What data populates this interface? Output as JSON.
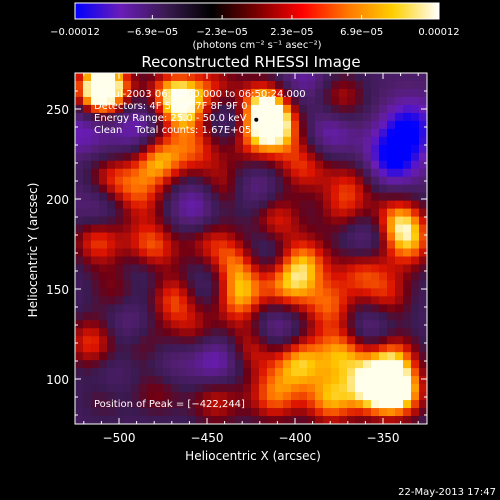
{
  "chart_data": {
    "type": "heatmap",
    "title": "Reconstructed RHESSI Image",
    "xlabel": "Heliocentric X (arcsec)",
    "ylabel": "Heliocentric Y (arcsec)",
    "xlim": [
      -525,
      -325
    ],
    "ylim": [
      75,
      270
    ],
    "x_ticks": [
      -500,
      -450,
      -400,
      -350
    ],
    "x_tick_labels": [
      "−500",
      "−450",
      "−400",
      "−350"
    ],
    "y_ticks": [
      100,
      150,
      200,
      250
    ],
    "y_tick_labels": [
      "100",
      "150",
      "200",
      "250"
    ],
    "colorbar": {
      "min": -0.00012,
      "max": 0.00012,
      "ticks": [
        -0.00012,
        -6.9e-05,
        -2.3e-05,
        2.3e-05,
        6.9e-05,
        0.00012
      ],
      "tick_labels": [
        "−0.00012",
        "−6.9e−05",
        "−2.3e−05",
        "2.3e−05",
        "6.9e−05",
        "0.00012"
      ],
      "unit_label": "(photons cm⁻² s⁻¹ asec⁻²)",
      "colors": [
        "#0000ff",
        "#6a1cb8",
        "#3a1a50",
        "#000000",
        "#7a0000",
        "#ff0000",
        "#ff7700",
        "#ffd000",
        "#ffffff"
      ]
    },
    "annotations": {
      "time_range": "2-Jul-2003 06:48:00.000 to 06:50:24.000",
      "detectors": "Detectors: 4F 5F 6F 7F 8F 9F 0",
      "energy_range": "Energy Range: 25.0 - 50.0 keV",
      "method_counts": "Clean    Total counts: 1.67E+05",
      "peak": "Position of Peak = [−422,244]"
    },
    "peak": [
      -422,
      244
    ],
    "blobs": [
      {
        "x": -512,
        "y": 258,
        "v": 0.85
      },
      {
        "x": -507,
        "y": 262,
        "v": 0.9
      },
      {
        "x": -470,
        "y": 258,
        "v": 0.8
      },
      {
        "x": -462,
        "y": 250,
        "v": 0.7
      },
      {
        "x": -445,
        "y": 262,
        "v": 0.55
      },
      {
        "x": -418,
        "y": 252,
        "v": 0.95
      },
      {
        "x": -410,
        "y": 240,
        "v": 0.9
      },
      {
        "x": -375,
        "y": 255,
        "v": 0.65
      },
      {
        "x": -478,
        "y": 222,
        "v": 0.9
      },
      {
        "x": -455,
        "y": 228,
        "v": 0.6
      },
      {
        "x": -425,
        "y": 232,
        "v": 0.55
      },
      {
        "x": -395,
        "y": 218,
        "v": 0.65
      },
      {
        "x": -368,
        "y": 210,
        "v": 0.5
      },
      {
        "x": -505,
        "y": 210,
        "v": 0.7
      },
      {
        "x": -488,
        "y": 200,
        "v": 0.55
      },
      {
        "x": -440,
        "y": 205,
        "v": 0.7
      },
      {
        "x": -412,
        "y": 188,
        "v": 0.75
      },
      {
        "x": -372,
        "y": 192,
        "v": 0.55
      },
      {
        "x": -342,
        "y": 188,
        "v": 0.85
      },
      {
        "x": -335,
        "y": 175,
        "v": 0.7
      },
      {
        "x": -512,
        "y": 178,
        "v": 0.8
      },
      {
        "x": -482,
        "y": 172,
        "v": 0.9
      },
      {
        "x": -450,
        "y": 178,
        "v": 0.6
      },
      {
        "x": -432,
        "y": 165,
        "v": 0.75
      },
      {
        "x": -395,
        "y": 165,
        "v": 0.8
      },
      {
        "x": -362,
        "y": 162,
        "v": 0.7
      },
      {
        "x": -500,
        "y": 150,
        "v": 0.55
      },
      {
        "x": -468,
        "y": 145,
        "v": 0.8
      },
      {
        "x": -432,
        "y": 145,
        "v": 0.85
      },
      {
        "x": -405,
        "y": 150,
        "v": 0.75
      },
      {
        "x": -380,
        "y": 140,
        "v": 0.7
      },
      {
        "x": -348,
        "y": 145,
        "v": 0.6
      },
      {
        "x": -515,
        "y": 120,
        "v": 0.75
      },
      {
        "x": -485,
        "y": 118,
        "v": 0.6
      },
      {
        "x": -455,
        "y": 125,
        "v": 0.55
      },
      {
        "x": -425,
        "y": 118,
        "v": 0.75
      },
      {
        "x": -398,
        "y": 110,
        "v": 0.9
      },
      {
        "x": -372,
        "y": 115,
        "v": 0.85
      },
      {
        "x": -345,
        "y": 112,
        "v": 0.8
      },
      {
        "x": -355,
        "y": 95,
        "v": 1.0
      },
      {
        "x": -340,
        "y": 92,
        "v": 0.95
      },
      {
        "x": -380,
        "y": 88,
        "v": 0.85
      },
      {
        "x": -412,
        "y": 90,
        "v": 0.75
      },
      {
        "x": -445,
        "y": 88,
        "v": 0.6
      },
      {
        "x": -478,
        "y": 95,
        "v": 0.55
      },
      {
        "x": -508,
        "y": 92,
        "v": 0.5
      },
      {
        "x": -490,
        "y": 240,
        "v": -0.6
      },
      {
        "x": -440,
        "y": 245,
        "v": -0.5
      },
      {
        "x": -380,
        "y": 238,
        "v": -0.55
      },
      {
        "x": -345,
        "y": 222,
        "v": -0.85
      },
      {
        "x": -335,
        "y": 240,
        "v": -0.75
      },
      {
        "x": -455,
        "y": 195,
        "v": -0.65
      },
      {
        "x": -425,
        "y": 205,
        "v": -0.5
      },
      {
        "x": -510,
        "y": 195,
        "v": -0.55
      },
      {
        "x": -360,
        "y": 178,
        "v": -0.6
      },
      {
        "x": -418,
        "y": 172,
        "v": -0.5
      },
      {
        "x": -488,
        "y": 160,
        "v": -0.5
      },
      {
        "x": -495,
        "y": 130,
        "v": -0.45
      },
      {
        "x": -445,
        "y": 112,
        "v": -0.7
      },
      {
        "x": -475,
        "y": 108,
        "v": -0.5
      },
      {
        "x": -412,
        "y": 128,
        "v": -0.6
      },
      {
        "x": -358,
        "y": 128,
        "v": -0.55
      },
      {
        "x": -505,
        "y": 100,
        "v": -0.45
      },
      {
        "x": -452,
        "y": 150,
        "v": -0.4
      },
      {
        "x": -520,
        "y": 240,
        "v": -0.55
      },
      {
        "x": -395,
        "y": 265,
        "v": -0.4
      }
    ]
  },
  "footer": {
    "timestamp": "22-May-2013 17:47"
  }
}
